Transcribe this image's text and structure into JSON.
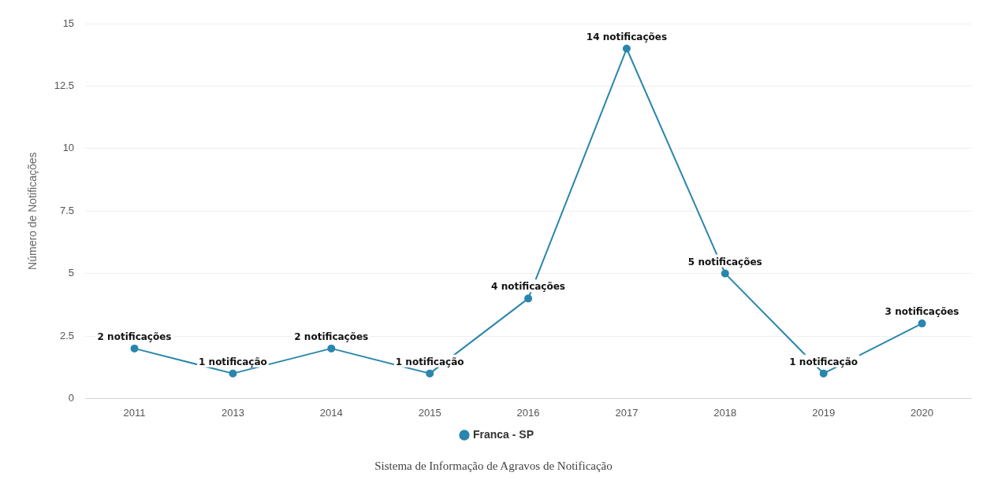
{
  "chart_data": {
    "type": "line",
    "ylabel": "Número de Notificações",
    "categories": [
      "2011",
      "2013",
      "2014",
      "2015",
      "2016",
      "2017",
      "2018",
      "2019",
      "2020"
    ],
    "series": [
      {
        "name": "Franca - SP",
        "color": "#2a86ad",
        "values": [
          2,
          1,
          2,
          1,
          4,
          14,
          5,
          1,
          3
        ],
        "value_labels": [
          "2 notificações",
          "1 notificação",
          "2 notificações",
          "1 notificação",
          "4 notificações",
          "14 notificações",
          "5 notificações",
          "1 notificação",
          "3 notificações"
        ]
      }
    ],
    "ylim": [
      0,
      15
    ],
    "yticks": [
      0,
      2.5,
      5,
      7.5,
      10,
      12.5,
      15
    ],
    "grid": "y",
    "legend": "bottom",
    "marker": "circle",
    "line_style": "solid",
    "annotations": [
      "Sistema de Informação de Agravos de Notificação"
    ]
  }
}
